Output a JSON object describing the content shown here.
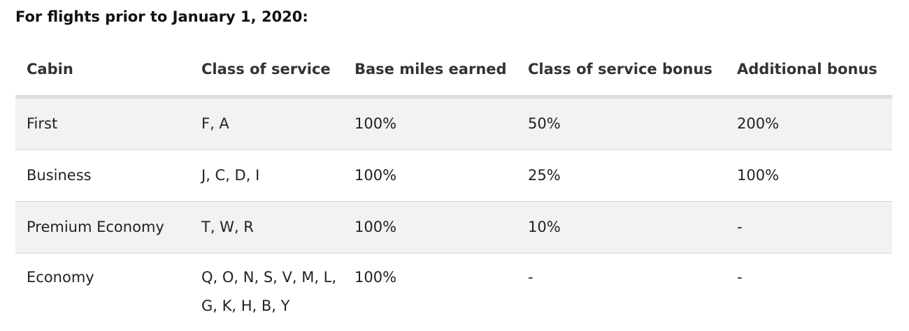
{
  "heading": "For flights prior to January 1, 2020:",
  "table": {
    "headers": [
      "Cabin",
      "Class of service",
      "Base miles earned",
      "Class of service bonus",
      "Additional bonus"
    ],
    "rows": [
      [
        "First",
        "F, A",
        "100%",
        "50%",
        "200%"
      ],
      [
        "Business",
        "J, C, D, I",
        "100%",
        "25%",
        "100%"
      ],
      [
        "Premium Economy",
        "T, W, R",
        "100%",
        "10%",
        "-"
      ],
      [
        "Economy",
        "Q, O, N, S, V, M, L, G, K, H, B, Y",
        "100%",
        "-",
        "-"
      ]
    ]
  }
}
